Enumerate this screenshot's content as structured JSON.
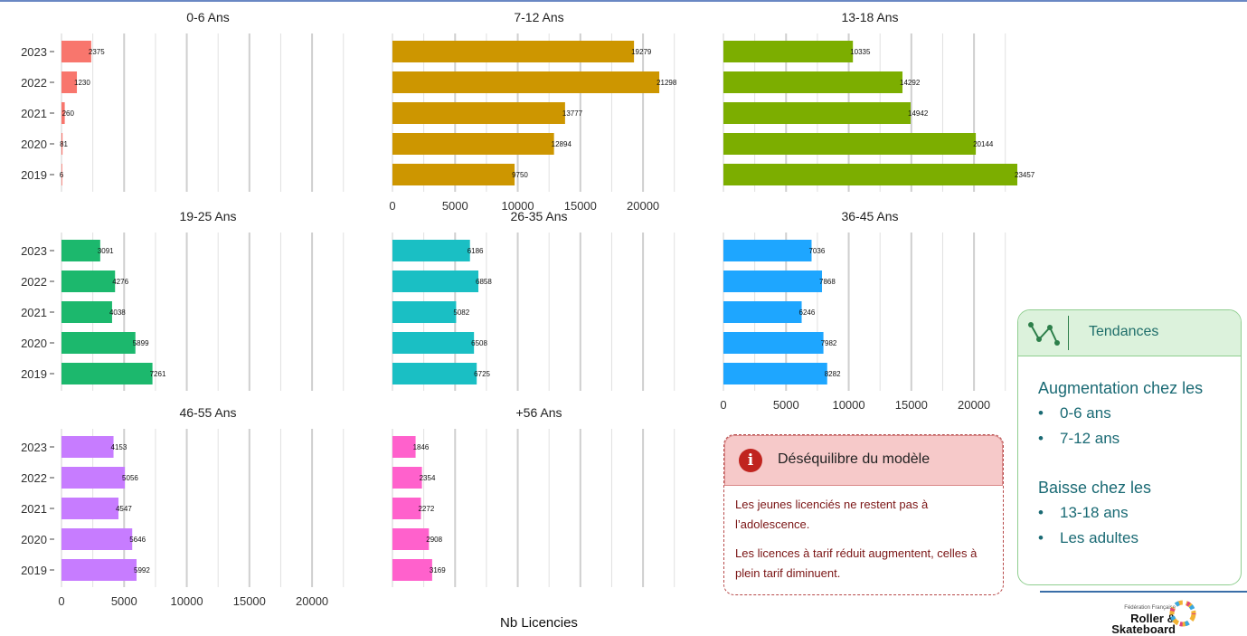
{
  "chart_data": {
    "type": "bar",
    "orientation": "horizontal",
    "categories": [
      "2023",
      "2022",
      "2021",
      "2020",
      "2019"
    ],
    "xlim": [
      0,
      23457
    ],
    "xticks": [
      0,
      5000,
      10000,
      15000,
      20000
    ],
    "xlabel": "Nb Licencies",
    "grid": true,
    "panels": [
      {
        "title": "0-6 Ans",
        "color": "#f8766d",
        "values": [
          2375,
          1230,
          260,
          81,
          6
        ]
      },
      {
        "title": "7-12 Ans",
        "color": "#cd9600",
        "values": [
          19279,
          21298,
          13777,
          12894,
          9750
        ]
      },
      {
        "title": "13-18 Ans",
        "color": "#7cae00",
        "values": [
          10335,
          14292,
          14942,
          20144,
          23457
        ]
      },
      {
        "title": "19-25 Ans",
        "color": "#1cb86d",
        "values": [
          3091,
          4276,
          4038,
          5899,
          7261
        ]
      },
      {
        "title": "26-35 Ans",
        "color": "#1abfc4",
        "values": [
          6186,
          6858,
          5082,
          6508,
          6725
        ]
      },
      {
        "title": "36-45 Ans",
        "color": "#1ea6ff",
        "values": [
          7036,
          7868,
          6246,
          7982,
          8282
        ]
      },
      {
        "title": "46-55 Ans",
        "color": "#c77cff",
        "values": [
          4153,
          5056,
          4547,
          5646,
          5992
        ]
      },
      {
        "title": "+56 Ans",
        "color": "#ff61cc",
        "values": [
          1846,
          2354,
          2272,
          2908,
          3169
        ]
      }
    ]
  },
  "info_box": {
    "icon": "info-icon",
    "title": "Déséquilibre du modèle",
    "paragraph1": "Les jeunes licenciés ne restent pas à l’adolescence.",
    "paragraph2": "Les licences à tarif réduit augmentent, celles à plein tarif diminuent."
  },
  "trends": {
    "icon": "trend-line-icon",
    "title": "Tendances",
    "increase_heading": "Augmentation chez les",
    "increase_items": [
      "0-6 ans",
      "7-12 ans"
    ],
    "decrease_heading": "Baisse chez les",
    "decrease_items": [
      "13-18 ans",
      "Les adultes"
    ]
  },
  "logo": {
    "small_text": "Fédération Française",
    "name_line1": "Roller",
    "name_line2": "& Skateboard"
  }
}
